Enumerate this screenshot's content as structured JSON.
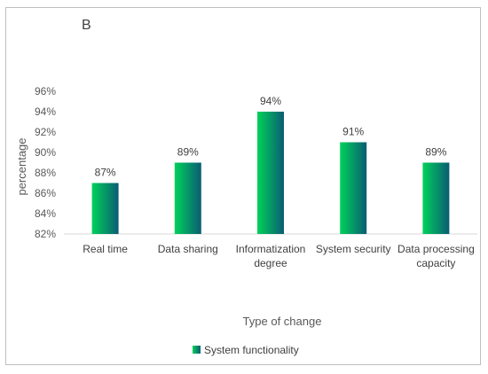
{
  "panel_label": "B",
  "chart_data": {
    "type": "bar",
    "title": "",
    "categories": [
      [
        "Real time"
      ],
      [
        "Data sharing"
      ],
      [
        "Informatization",
        "degree"
      ],
      [
        "System security"
      ],
      [
        "Data processing",
        "capacity"
      ]
    ],
    "series": [
      {
        "name": "System functionality",
        "values": [
          87,
          89,
          94,
          91,
          89
        ]
      }
    ],
    "data_labels": [
      "87%",
      "89%",
      "94%",
      "91%",
      "89%"
    ],
    "xlabel": "Type of change",
    "ylabel": "percentage",
    "ylim": [
      82,
      96
    ],
    "yticks": [
      "82%",
      "84%",
      "86%",
      "88%",
      "90%",
      "92%",
      "94%",
      "96%"
    ],
    "grid": false,
    "legend_position": "bottom",
    "colors": {
      "bar_start": "#00D25A",
      "bar_end": "#0A5C73",
      "axis": "#d9d9d9"
    }
  }
}
